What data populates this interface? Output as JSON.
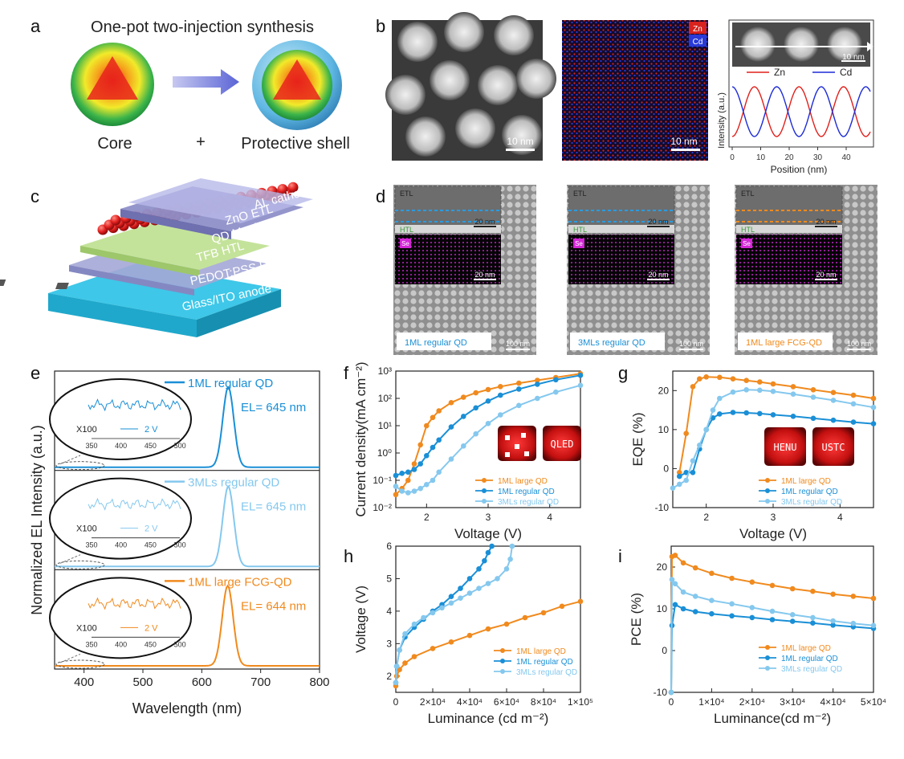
{
  "panel_letters": [
    "a",
    "b",
    "c",
    "d",
    "e",
    "f",
    "g",
    "h",
    "i"
  ],
  "panel_a": {
    "title": "One-pot two-injection synthesis",
    "core_label": "Core",
    "plus": "+",
    "shell_label": "Protective shell"
  },
  "panel_b": {
    "scale_1": "10 nm",
    "scale_2": "10 nm",
    "scale_3": "10 nm",
    "legend_zn": "Zn",
    "legend_cd": "Cd",
    "ylabel": "Intensity (a.u.)",
    "xlabel": "Position (nm)",
    "xticks": [
      "0",
      "10",
      "20",
      "30",
      "40"
    ],
    "series_zn": "Zn",
    "series_cd": "Cd"
  },
  "panel_c": {
    "layers": [
      "AL cathode",
      "ZnO ETL",
      "QD Monlayer",
      "TFB HTL",
      "PEDOT:PSS HIL",
      "Glass/ITO anode"
    ]
  },
  "panel_d": {
    "etl": "ETL",
    "htl": "HTL",
    "se": "Se",
    "scale_20": "20 nm",
    "scale_100": "100 nm",
    "samples": [
      "1ML regular QD",
      "3MLs regular QD",
      "1ML large FCG-QD"
    ]
  },
  "panel_e": {
    "ylabel": "Normalized EL Intensity (a.u.)",
    "xlabel": "Wavelength (nm)",
    "xticks": [
      "400",
      "500",
      "600",
      "700",
      "800"
    ],
    "inset_xticks": [
      "350",
      "400",
      "450",
      "500"
    ],
    "x100": "X100",
    "inset_v": "2 V",
    "spectra": [
      {
        "name": "1ML regular QD",
        "peak_label": "EL= 645 nm",
        "color": "#1a8fd6"
      },
      {
        "name": "3MLs regular QD",
        "peak_label": "EL= 645 nm",
        "color": "#85c8ee"
      },
      {
        "name": "1ML large FCG-QD",
        "peak_label": "EL= 644 nm",
        "color": "#f08a1e"
      }
    ]
  },
  "panel_f": {
    "ylabel": "Current density(mA cm⁻²)",
    "xlabel": "Voltage (V)",
    "xticks": [
      "2",
      "3",
      "4"
    ],
    "yticks": [
      "10⁻²",
      "10⁻¹",
      "10⁰",
      "10¹",
      "10²",
      "10³"
    ],
    "legend": [
      "1ML large QD",
      "1ML regular QD",
      "3MLs regular QD"
    ],
    "photo_label": "QLED"
  },
  "panel_g": {
    "ylabel": "EQE (%)",
    "xlabel": "Voltage (V)",
    "xticks": [
      "2",
      "3",
      "4"
    ],
    "yticks": [
      "-10",
      "0",
      "10",
      "20"
    ],
    "legend": [
      "1ML large QD",
      "1ML regular QD",
      "3MLs regular QD"
    ],
    "photo_labels": [
      "HENU",
      "USTC"
    ]
  },
  "panel_h": {
    "ylabel": "Voltage (V)",
    "xlabel": "Luminance (cd m⁻²)",
    "xticks": [
      "0",
      "2×10⁴",
      "4×10⁴",
      "6×10⁴",
      "8×10⁴",
      "1×10⁵"
    ],
    "yticks": [
      "2",
      "3",
      "4",
      "5",
      "6"
    ],
    "legend": [
      "1ML large QD",
      "1ML regular QD",
      "3MLs regular QD"
    ]
  },
  "panel_i": {
    "ylabel": "PCE (%)",
    "xlabel": "Luminance(cd m⁻²)",
    "xticks": [
      "0",
      "1×10⁴",
      "2×10⁴",
      "3×10⁴",
      "4×10⁴",
      "5×10⁴"
    ],
    "yticks": [
      "-10",
      "0",
      "10",
      "20"
    ],
    "legend": [
      "1ML large QD",
      "1ML regular QD",
      "3MLs regular QD"
    ]
  },
  "colors": {
    "orange": "#f08a1e",
    "blue": "#1a8fd6",
    "lightblue": "#85c8ee",
    "zn": "#e0201b",
    "cd": "#1c2bd6"
  },
  "chart_data": [
    {
      "type": "line",
      "id": "f",
      "xlim": [
        1.5,
        4.5
      ],
      "ylim_log10": [
        -2,
        3
      ],
      "yscale": "log",
      "series": [
        {
          "name": "1ML large QD",
          "x": [
            1.5,
            1.6,
            1.7,
            1.8,
            1.9,
            2.0,
            2.1,
            2.2,
            2.4,
            2.6,
            2.8,
            3.0,
            3.2,
            3.5,
            3.8,
            4.1,
            4.5
          ],
          "y": [
            0.03,
            0.05,
            0.1,
            0.4,
            2,
            10,
            20,
            35,
            70,
            110,
            160,
            210,
            270,
            360,
            460,
            580,
            800
          ]
        },
        {
          "name": "1ML regular QD",
          "x": [
            1.5,
            1.6,
            1.7,
            1.8,
            1.9,
            2.0,
            2.1,
            2.2,
            2.4,
            2.6,
            2.8,
            3.0,
            3.2,
            3.5,
            3.8,
            4.1,
            4.5
          ],
          "y": [
            0.15,
            0.18,
            0.2,
            0.25,
            0.4,
            0.8,
            1.6,
            3,
            9,
            22,
            45,
            80,
            130,
            220,
            330,
            480,
            700
          ]
        },
        {
          "name": "3MLs regular QD",
          "x": [
            1.5,
            1.6,
            1.7,
            1.8,
            1.9,
            2.0,
            2.1,
            2.2,
            2.4,
            2.6,
            2.8,
            3.0,
            3.2,
            3.5,
            3.8,
            4.1,
            4.5
          ],
          "y": [
            0.06,
            0.04,
            0.035,
            0.04,
            0.05,
            0.07,
            0.1,
            0.2,
            0.6,
            1.8,
            5,
            12,
            25,
            55,
            100,
            170,
            300
          ]
        }
      ]
    },
    {
      "type": "line",
      "id": "g",
      "xlim": [
        1.5,
        4.5
      ],
      "ylim": [
        -10,
        25
      ],
      "series": [
        {
          "name": "1ML large QD",
          "x": [
            1.6,
            1.7,
            1.8,
            1.9,
            2.0,
            2.2,
            2.4,
            2.6,
            2.8,
            3.0,
            3.3,
            3.6,
            3.9,
            4.2,
            4.5
          ],
          "y": [
            -1,
            9,
            21,
            23,
            23.5,
            23.4,
            23,
            22.6,
            22.2,
            21.7,
            21,
            20.2,
            19.5,
            18.8,
            18
          ]
        },
        {
          "name": "1ML regular QD",
          "x": [
            1.6,
            1.7,
            1.8,
            1.9,
            2.0,
            2.1,
            2.2,
            2.4,
            2.6,
            2.8,
            3.0,
            3.3,
            3.6,
            3.9,
            4.2,
            4.5
          ],
          "y": [
            -2,
            -1,
            -1,
            5,
            10,
            13,
            14,
            14.4,
            14.3,
            14.1,
            13.8,
            13.4,
            12.9,
            12.4,
            11.9,
            11.5
          ]
        },
        {
          "name": "3MLs regular QD",
          "x": [
            1.5,
            1.6,
            1.7,
            1.8,
            1.9,
            2.0,
            2.1,
            2.2,
            2.4,
            2.6,
            2.8,
            3.0,
            3.3,
            3.6,
            3.9,
            4.2,
            4.5
          ],
          "y": [
            -5,
            -4,
            -3,
            2,
            6,
            10,
            15,
            18,
            19.6,
            20.2,
            20.1,
            19.8,
            19.1,
            18.3,
            17.5,
            16.6,
            15.7
          ]
        }
      ]
    },
    {
      "type": "line",
      "id": "h",
      "xlabel": "Luminance (cd m⁻²)",
      "ylabel": "Voltage (V)",
      "xlim": [
        0,
        100000
      ],
      "ylim": [
        1.5,
        6
      ],
      "series": [
        {
          "name": "1ML large QD",
          "x": [
            0,
            500,
            2000,
            5000,
            10000,
            20000,
            30000,
            40000,
            50000,
            60000,
            70000,
            80000,
            90000,
            100000
          ],
          "y": [
            1.7,
            2.0,
            2.2,
            2.4,
            2.6,
            2.85,
            3.05,
            3.25,
            3.45,
            3.6,
            3.8,
            3.95,
            4.15,
            4.3
          ]
        },
        {
          "name": "1ML regular QD",
          "x": [
            0,
            500,
            2000,
            5000,
            10000,
            15000,
            20000,
            25000,
            30000,
            35000,
            40000,
            45000,
            48000,
            50000,
            52000
          ],
          "y": [
            1.8,
            2.3,
            2.8,
            3.2,
            3.5,
            3.75,
            4.0,
            4.2,
            4.45,
            4.7,
            5.0,
            5.3,
            5.55,
            5.8,
            6.0
          ]
        },
        {
          "name": "3MLs regular QD",
          "x": [
            0,
            500,
            2000,
            5000,
            10000,
            15000,
            20000,
            25000,
            30000,
            35000,
            40000,
            45000,
            50000,
            55000,
            60000,
            62000,
            63000
          ],
          "y": [
            1.8,
            2.3,
            2.8,
            3.3,
            3.6,
            3.8,
            3.95,
            4.1,
            4.25,
            4.4,
            4.55,
            4.7,
            4.85,
            5.0,
            5.3,
            5.6,
            6.0
          ]
        }
      ]
    },
    {
      "type": "line",
      "id": "i",
      "xlabel": "Luminance(cd m⁻²)",
      "ylabel": "PCE (%)",
      "xlim": [
        0,
        50000
      ],
      "ylim": [
        -10,
        25
      ],
      "series": [
        {
          "name": "1ML large QD",
          "x": [
            0,
            200,
            1000,
            3000,
            6000,
            10000,
            15000,
            20000,
            25000,
            30000,
            35000,
            40000,
            45000,
            50000
          ],
          "y": [
            -10,
            22.5,
            22.8,
            21,
            19.8,
            18.5,
            17.3,
            16.4,
            15.6,
            14.8,
            14.2,
            13.5,
            13,
            12.5
          ]
        },
        {
          "name": "1ML regular QD",
          "x": [
            0,
            200,
            1000,
            3000,
            6000,
            10000,
            15000,
            20000,
            25000,
            30000,
            35000,
            40000,
            45000,
            50000
          ],
          "y": [
            -10,
            6,
            11,
            10,
            9.3,
            8.8,
            8.3,
            7.9,
            7.4,
            7,
            6.6,
            6.1,
            5.7,
            5.3
          ]
        },
        {
          "name": "3MLs regular QD",
          "x": [
            0,
            200,
            1000,
            3000,
            6000,
            10000,
            15000,
            20000,
            25000,
            30000,
            35000,
            40000,
            45000,
            50000
          ],
          "y": [
            -10,
            17,
            16,
            14,
            13,
            12,
            11.2,
            10.3,
            9.4,
            8.6,
            7.9,
            7.1,
            6.5,
            6
          ]
        }
      ]
    },
    {
      "type": "line",
      "id": "e",
      "xlabel": "Wavelength (nm)",
      "ylabel": "Normalized EL Intensity (a.u.)",
      "xlim": [
        350,
        800
      ],
      "series": [
        {
          "name": "1ML regular QD",
          "peak_nm": 645,
          "fwhm_nm": 22
        },
        {
          "name": "3MLs regular QD",
          "peak_nm": 645,
          "fwhm_nm": 22
        },
        {
          "name": "1ML large FCG-QD",
          "peak_nm": 644,
          "fwhm_nm": 22
        }
      ]
    }
  ]
}
